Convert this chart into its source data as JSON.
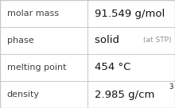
{
  "rows": [
    {
      "label": "molar mass",
      "value": "91.549 g/mol",
      "value_extra": null,
      "superscript": null
    },
    {
      "label": "phase",
      "value": "solid",
      "value_extra": "(at STP)",
      "superscript": null
    },
    {
      "label": "melting point",
      "value": "454 °C",
      "value_extra": null,
      "superscript": null
    },
    {
      "label": "density",
      "value": "2.985 g/cm",
      "value_extra": null,
      "superscript": "3"
    }
  ],
  "col_split": 0.5,
  "bg_color": "#ffffff",
  "border_color": "#c8c8c8",
  "label_color": "#404040",
  "value_color": "#111111",
  "extra_color": "#909090",
  "label_fontsize": 8.0,
  "value_fontsize": 9.5,
  "extra_fontsize": 6.5,
  "super_fontsize": 6.0,
  "font_family": "DejaVu Sans"
}
